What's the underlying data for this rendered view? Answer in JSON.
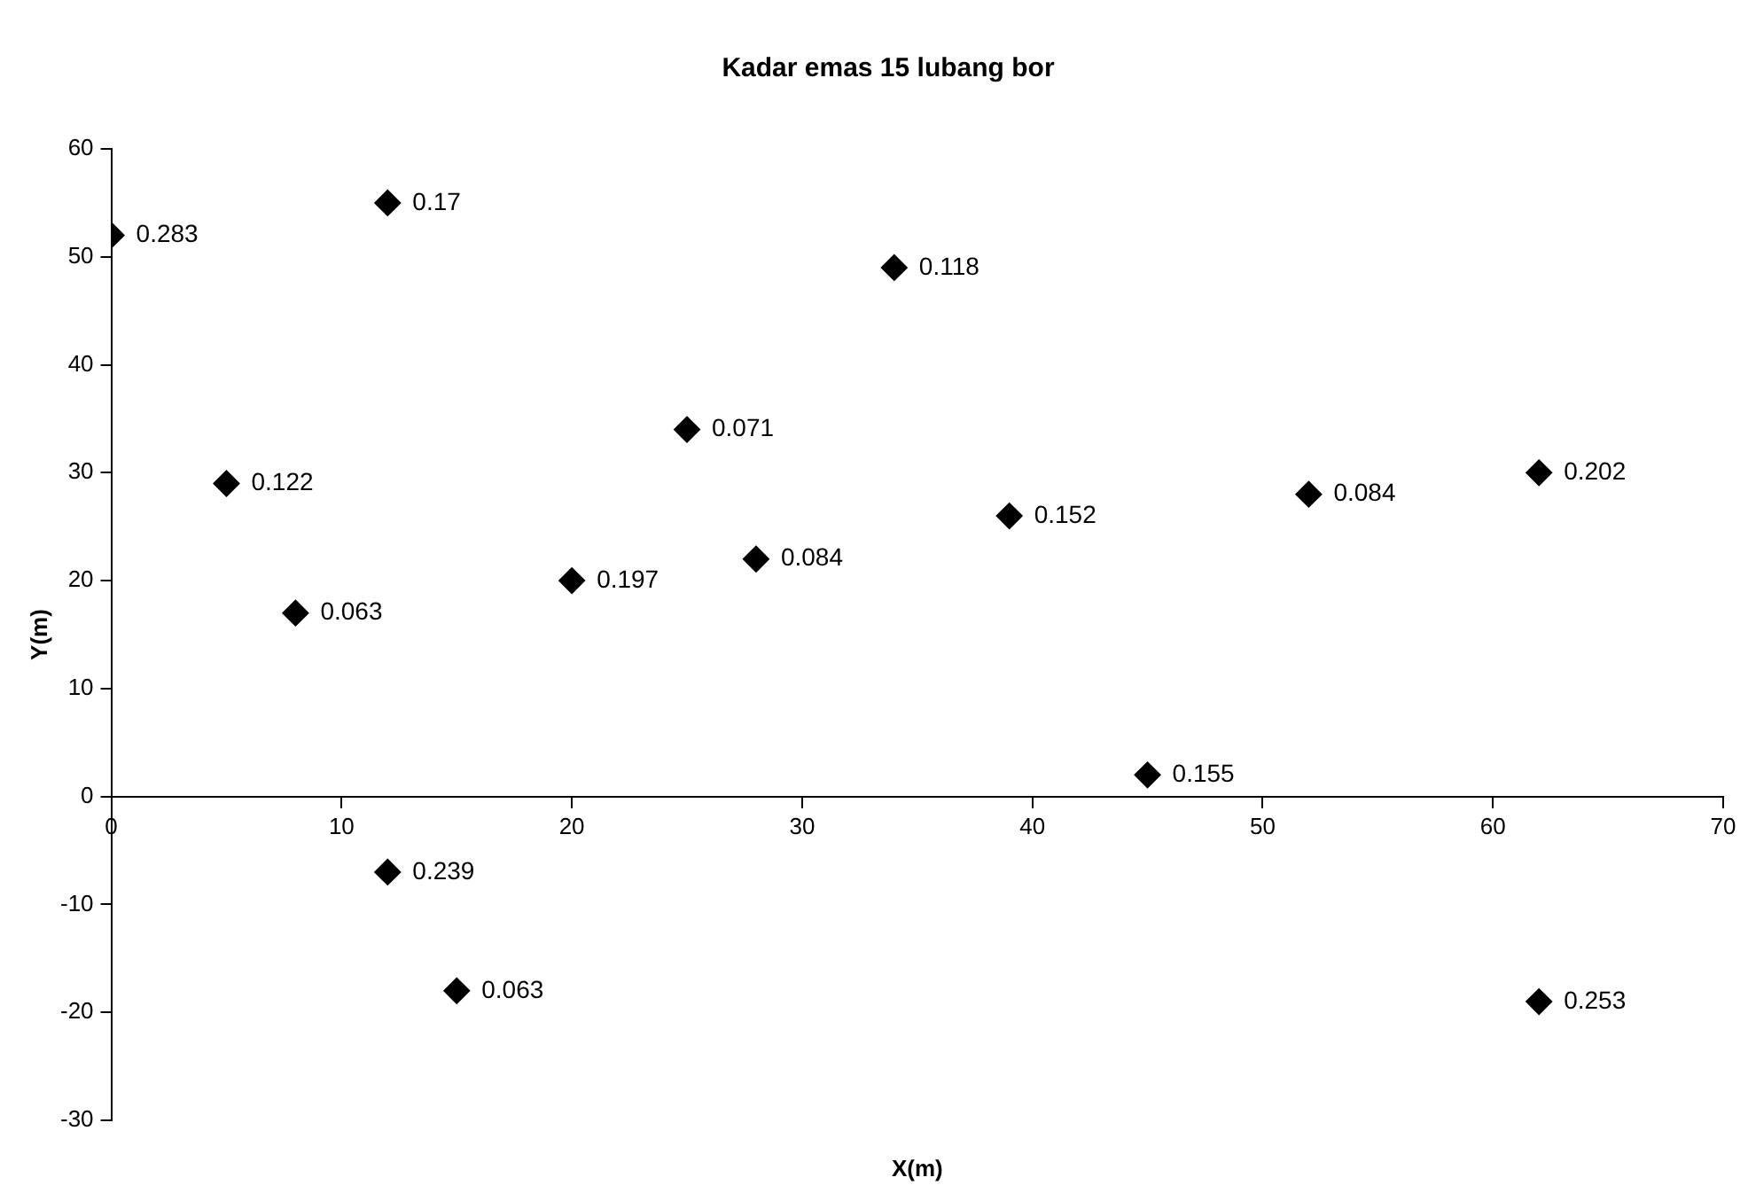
{
  "chart_data": {
    "type": "scatter",
    "title": "Kadar emas 15 lubang bor",
    "xlabel": "X(m)",
    "ylabel": "Y(m)",
    "x": [
      0,
      12,
      34,
      25,
      5,
      62,
      52,
      39,
      28,
      20,
      8,
      45,
      12,
      15,
      62
    ],
    "values": [
      52,
      55,
      49,
      34,
      29,
      30,
      28,
      26,
      22,
      20,
      17,
      2,
      -7,
      -18,
      -19
    ],
    "annotations": [
      {
        "text": "0.283",
        "x": 0,
        "y": 52
      },
      {
        "text": "0.17",
        "x": 12,
        "y": 55
      },
      {
        "text": "0.118",
        "x": 34,
        "y": 49
      },
      {
        "text": "0.071",
        "x": 25,
        "y": 34
      },
      {
        "text": "0.122",
        "x": 5,
        "y": 29
      },
      {
        "text": "0.202",
        "x": 62,
        "y": 30
      },
      {
        "text": "0.084",
        "x": 52,
        "y": 28
      },
      {
        "text": "0.152",
        "x": 39,
        "y": 26
      },
      {
        "text": "0.084",
        "x": 28,
        "y": 22
      },
      {
        "text": "0.197",
        "x": 20,
        "y": 20
      },
      {
        "text": "0.063",
        "x": 8,
        "y": 17
      },
      {
        "text": "0.155",
        "x": 45,
        "y": 2
      },
      {
        "text": "0.239",
        "x": 12,
        "y": -7
      },
      {
        "text": "0.063",
        "x": 15,
        "y": -18
      },
      {
        "text": "0.253",
        "x": 62,
        "y": -19
      }
    ],
    "color": "#000000",
    "marker": "diamond",
    "grid": false,
    "legend": false,
    "xlim": [
      0,
      70
    ],
    "xticks": [
      0,
      10,
      20,
      30,
      40,
      50,
      60,
      70
    ],
    "ylim": [
      -30,
      60
    ],
    "yticks": [
      -30,
      -20,
      -10,
      0,
      10,
      20,
      30,
      40,
      50,
      60
    ]
  }
}
